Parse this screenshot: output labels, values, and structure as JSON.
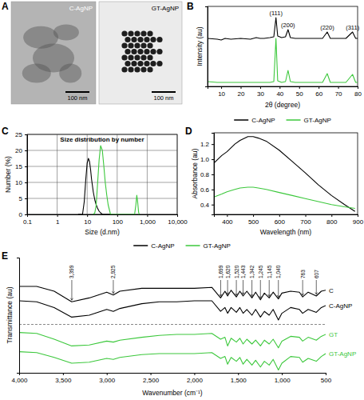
{
  "chart_data": [
    {
      "panel": "A",
      "type": "image",
      "images": [
        {
          "label": "C-AgNP",
          "scale_bar": "100 nm"
        },
        {
          "label": "GT-AgNP",
          "scale_bar": "100 nm"
        }
      ]
    },
    {
      "panel": "B",
      "type": "line",
      "x_label": "2θ (degree)",
      "y_label": "Intensity (au)",
      "x": [
        3,
        8,
        10,
        12,
        15,
        20,
        25,
        28,
        30,
        32,
        35,
        37,
        38.1,
        39,
        41,
        43,
        44.3,
        45.5,
        48,
        52,
        58,
        62,
        64.4,
        66,
        70,
        74,
        77.4,
        79,
        80
      ],
      "series": [
        {
          "name": "C-AgNP",
          "color": "#000000",
          "values": [
            60,
            59,
            58,
            60,
            59,
            60,
            59,
            61,
            60,
            60,
            61,
            62,
            86,
            63,
            61,
            62,
            71,
            61,
            60,
            60,
            60,
            60,
            68,
            60,
            60,
            60,
            68,
            60,
            60
          ]
        },
        {
          "name": "GT-AgNP",
          "color": "#3cc83c",
          "values": [
            6,
            5,
            5,
            5,
            5,
            5,
            5,
            5,
            5,
            5,
            5,
            6,
            60,
            7,
            5,
            6,
            20,
            6,
            5,
            5,
            5,
            5,
            16,
            5,
            5,
            5,
            15,
            5,
            5
          ]
        }
      ],
      "xlim": [
        3,
        80
      ],
      "xticks": [
        10,
        20,
        30,
        40,
        50,
        60,
        70,
        80
      ],
      "ylim": [
        0,
        100
      ],
      "yticks": [],
      "tick_labels": "x",
      "legend": "bottom",
      "annotations": [
        {
          "x": 38.1,
          "label": "(111)"
        },
        {
          "x": 44.3,
          "label": "(200)"
        },
        {
          "x": 64.4,
          "label": "(220)"
        },
        {
          "x": 77.4,
          "label": "(311)"
        }
      ]
    },
    {
      "panel": "C",
      "type": "line",
      "title": "Size distribution by number",
      "x_label": "Size (d.nm)",
      "y_label": "Number (%)",
      "x": [
        5,
        6,
        7,
        8,
        9,
        10,
        11,
        12,
        13,
        14,
        16,
        18,
        20,
        22,
        25,
        28,
        32,
        36,
        40,
        45,
        50,
        60,
        380,
        420,
        450,
        480,
        520,
        560
      ],
      "series": [
        {
          "name": "C-AgNP",
          "color": "#000000",
          "values": [
            0,
            0,
            0,
            4,
            11,
            16,
            17.5,
            16.5,
            14,
            11,
            7,
            4.5,
            3,
            2,
            1,
            0.5,
            0,
            0,
            0,
            0,
            0,
            0,
            null,
            null,
            null,
            null,
            null,
            null
          ]
        },
        {
          "name": "GT-AgNP",
          "color": "#3cc83c",
          "values": [
            null,
            null,
            null,
            null,
            null,
            null,
            null,
            null,
            null,
            null,
            0,
            0.5,
            3,
            9,
            17,
            21.5,
            20,
            15,
            10,
            6,
            3,
            0,
            0,
            3,
            6,
            4,
            0.5,
            0
          ]
        }
      ],
      "log": "x",
      "grid": true,
      "legend": "bottom",
      "xlim": [
        0.1,
        10000
      ],
      "xticks": [
        0.1,
        1,
        10,
        100,
        {
          "value": 1000,
          "label": "1,000"
        },
        {
          "value": 10000,
          "label": "10,000"
        }
      ],
      "ylim": [
        0,
        25
      ],
      "yticks": [
        0,
        5,
        10,
        15,
        20,
        25
      ]
    },
    {
      "panel": "D",
      "type": "line",
      "x_label": "Wavelength (nm)",
      "y_label": "Absorbance (au)",
      "x": [
        350,
        380,
        400,
        430,
        450,
        480,
        500,
        520,
        550,
        600,
        650,
        700,
        750,
        800,
        850,
        890
      ],
      "series": [
        {
          "color": "#000000",
          "values": [
            0.95,
            1.05,
            1.1,
            1.2,
            1.25,
            1.3,
            1.3,
            1.28,
            1.24,
            1.12,
            0.97,
            0.82,
            0.66,
            0.52,
            0.4,
            0.31
          ]
        },
        {
          "color": "#3cc83c",
          "values": [
            0.5,
            0.54,
            0.57,
            0.6,
            0.62,
            0.63,
            0.63,
            0.62,
            0.6,
            0.56,
            0.52,
            0.48,
            0.44,
            0.4,
            0.37,
            0.35
          ]
        }
      ],
      "xlim": [
        350,
        900
      ],
      "xticks": [
        400,
        500,
        600,
        700,
        800,
        900
      ],
      "ylim": [
        0.27,
        1.35
      ],
      "yticks": [
        0.4,
        0.6,
        0.8,
        {
          "value": 1,
          "label": "1.0"
        },
        1.2
      ]
    },
    {
      "panel": "E",
      "type": "line",
      "x_label": "Wavenumber (cm⁻¹)",
      "y_label": "Transmittance (au)",
      "x": [
        4000,
        3800,
        3600,
        3400,
        3200,
        3000,
        2925,
        2850,
        2600,
        2400,
        2200,
        2000,
        1800,
        1700,
        1650,
        1620,
        1580,
        1520,
        1480,
        1443,
        1400,
        1342,
        1300,
        1245,
        1200,
        1145,
        1100,
        1040,
        1000,
        900,
        800,
        763,
        700,
        607,
        550,
        500
      ],
      "series": [
        {
          "name": "C",
          "color": "#000000",
          "values": [
            90,
            90,
            85,
            74,
            78,
            84,
            81,
            85,
            88,
            88,
            88,
            88,
            89,
            78,
            85,
            80,
            86,
            79,
            85,
            80,
            85,
            78,
            84,
            76,
            83,
            78,
            84,
            77,
            83,
            85,
            84,
            79,
            84,
            80,
            85,
            86
          ]
        },
        {
          "name": "C-AgNP",
          "color": "#000000",
          "values": [
            75,
            74,
            68,
            58,
            60,
            66,
            64,
            67,
            72,
            74,
            74,
            75,
            75,
            64,
            68,
            62,
            68,
            63,
            68,
            62,
            66,
            60,
            66,
            58,
            64,
            60,
            66,
            55,
            62,
            68,
            66,
            62,
            66,
            63,
            68,
            70
          ]
        },
        {
          "name": "GT",
          "color": "#3cc83c",
          "values": [
            42,
            41,
            35,
            28,
            29,
            33,
            32,
            34,
            37,
            39,
            40,
            40,
            41,
            35,
            37,
            28,
            36,
            32,
            36,
            30,
            35,
            30,
            34,
            28,
            34,
            30,
            35,
            26,
            33,
            38,
            37,
            33,
            37,
            34,
            38,
            40
          ]
        },
        {
          "name": "GT-AgNP",
          "color": "#3cc83c",
          "values": [
            22,
            21,
            16,
            10,
            11,
            15,
            14,
            16,
            19,
            20,
            20,
            20,
            21,
            15,
            17,
            9,
            16,
            12,
            16,
            9,
            14,
            8,
            13,
            6,
            12,
            8,
            14,
            3,
            10,
            17,
            16,
            11,
            15,
            12,
            17,
            20
          ]
        }
      ],
      "xlim": [
        4000,
        500
      ],
      "xticks": [
        {
          "value": 4000,
          "label": "4,000"
        },
        {
          "value": 3500,
          "label": "3,500"
        },
        {
          "value": 3000,
          "label": "3,000"
        },
        {
          "value": 2500,
          "label": "2,500"
        },
        {
          "value": 2000,
          "label": "2,000"
        },
        {
          "value": 1500,
          "label": "1,500"
        },
        {
          "value": 1000,
          "label": "1,000"
        },
        500
      ],
      "ylim": [
        0,
        120
      ],
      "yticks": [],
      "tick_labels": "x",
      "annotations": [
        {
          "x": 3399,
          "label": "3,399"
        },
        {
          "x": 2925,
          "label": "2,925"
        },
        {
          "x": 1699,
          "label": "1,699"
        },
        {
          "x": 1620,
          "label": "1,620"
        },
        {
          "x": 1520,
          "label": "1,520"
        },
        {
          "x": 1443,
          "label": "1,443"
        },
        {
          "x": 1342,
          "label": "1,342"
        },
        {
          "x": 1245,
          "label": "1,245"
        },
        {
          "x": 1145,
          "label": "1,145"
        },
        {
          "x": 1040,
          "label": "1,040"
        },
        {
          "x": 763,
          "label": "763"
        },
        {
          "x": 607,
          "label": "607"
        }
      ]
    }
  ]
}
